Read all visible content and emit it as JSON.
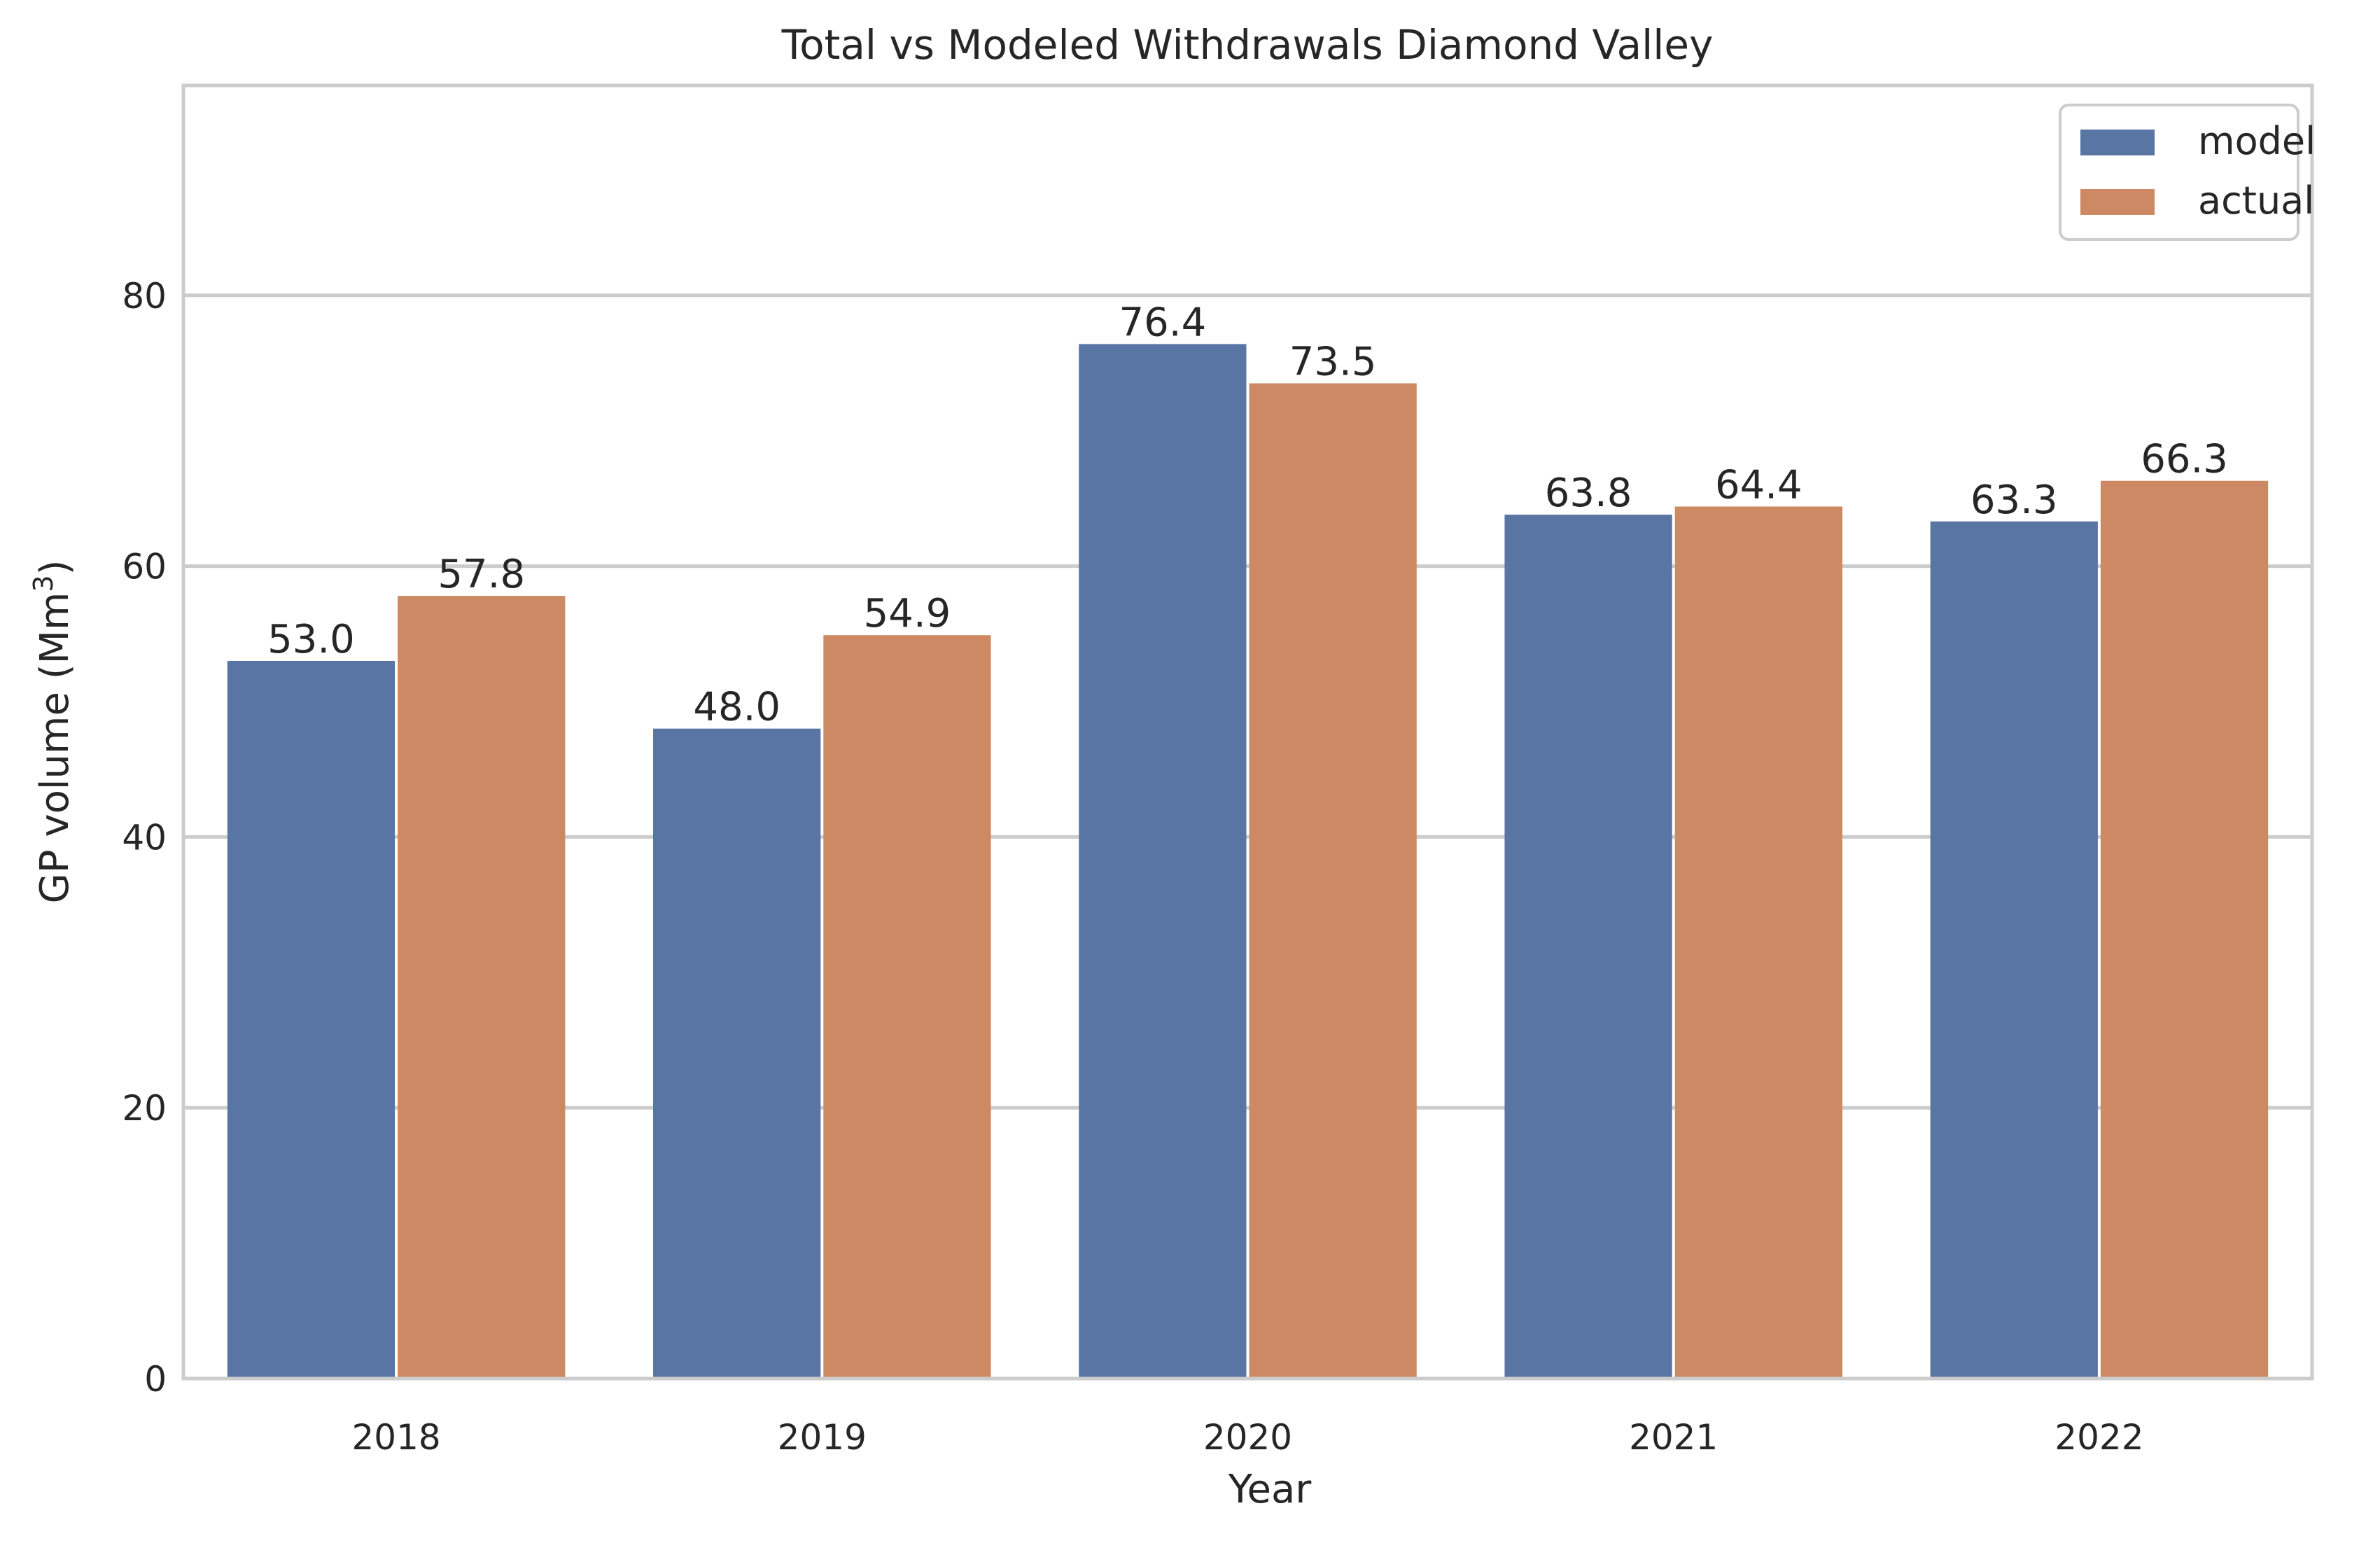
{
  "chart_data": {
    "type": "bar",
    "title": "Total vs Modeled Withdrawals Diamond Valley",
    "xlabel": "Year",
    "ylabel_main": "GP volume (Mm",
    "ylabel_sup": "3",
    "ylabel_close": ")",
    "categories": [
      "2018",
      "2019",
      "2020",
      "2021",
      "2022"
    ],
    "series": [
      {
        "name": "model",
        "color": "#5975a4",
        "values": [
          53.0,
          48.0,
          76.4,
          63.8,
          63.3
        ],
        "labels": [
          "53.0",
          "48.0",
          "76.4",
          "63.8",
          "63.3"
        ]
      },
      {
        "name": "actual",
        "color": "#cc8963",
        "values": [
          57.8,
          54.9,
          73.5,
          64.4,
          66.3
        ],
        "labels": [
          "57.8",
          "54.9",
          "73.5",
          "64.4",
          "66.3"
        ]
      }
    ],
    "ylim": [
      0,
      95.5
    ],
    "yticks": [
      0,
      20,
      40,
      60,
      80
    ],
    "ytick_labels": [
      "0",
      "20",
      "40",
      "60",
      "80"
    ],
    "grid": "horizontal",
    "legend_position": "top-right"
  }
}
